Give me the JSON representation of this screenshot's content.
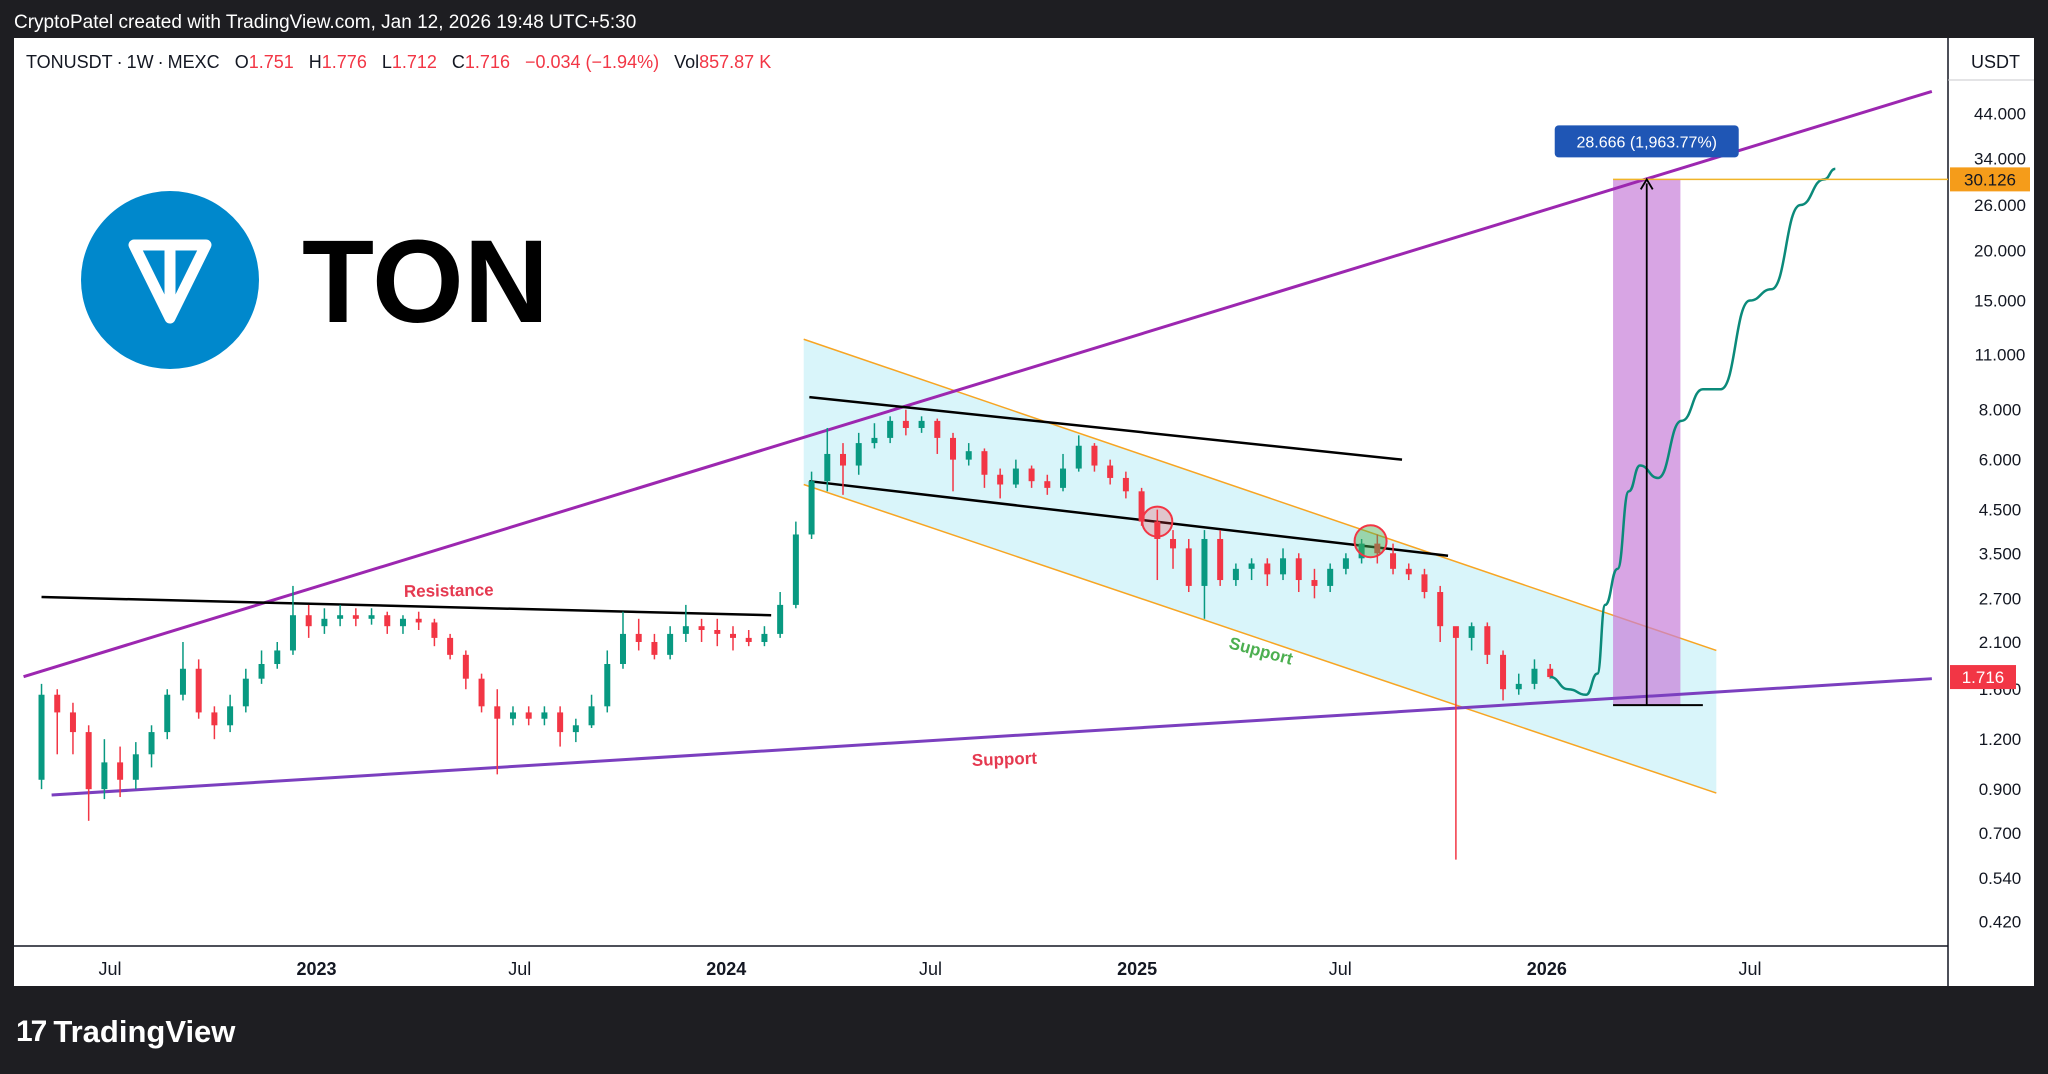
{
  "credit": "CryptoPatel created with TradingView.com, Jan 12, 2026 19:48 UTC+5:30",
  "header": {
    "symbol": "TONUSDT",
    "interval": "1W",
    "exchange": "MEXC",
    "open_label": "O",
    "open": "1.751",
    "high_label": "H",
    "high": "1.776",
    "low_label": "L",
    "low": "1.712",
    "close_label": "C",
    "close": "1.716",
    "change": "−0.034 (−1.94%)",
    "vol_label": "Vol",
    "volume": "857.87 K",
    "currency": "USDT"
  },
  "branding": {
    "coin_name": "TON",
    "logo_color": "#0088cc"
  },
  "footer": {
    "brand": "TradingView"
  },
  "colors": {
    "up": "#089981",
    "down": "#f23645",
    "channel_fill": "#ccf1f8",
    "channel_edge": "#f7a523",
    "support_line": "#7b3fbf",
    "upper_trend": "#9c27b0",
    "target_box": "#c77fd9",
    "projection": "#0b8a7a",
    "target_tag": "#f59c1a",
    "measure_tag": "#1f56b5"
  },
  "chart_data": {
    "type": "candlestick",
    "title": "",
    "y_scale": "log",
    "ylim": [
      0.38,
      60
    ],
    "y_ticks": [
      "44.000",
      "34.000",
      "26.000",
      "20.000",
      "15.000",
      "11.000",
      "8.000",
      "6.000",
      "4.500",
      "3.500",
      "2.700",
      "2.100",
      "1.600",
      "1.200",
      "0.900",
      "0.700",
      "0.540",
      "0.420"
    ],
    "x_ticks": [
      "Jul",
      "2023",
      "Jul",
      "2024",
      "Jul",
      "2025",
      "Jul",
      "2026",
      "Jul"
    ],
    "x_tick_values": [
      "2022-07-01",
      "2023-01-01",
      "2023-07-01",
      "2024-01-01",
      "2024-07-01",
      "2025-01-01",
      "2025-07-01",
      "2026-01-01",
      "2026-07-01"
    ],
    "xlim": [
      "2022-04-15",
      "2026-12-15"
    ],
    "candles": [
      [
        "2022-05-01",
        0.95,
        1.55,
        1.65,
        0.9
      ],
      [
        "2022-05-15",
        1.55,
        1.4,
        1.6,
        1.1
      ],
      [
        "2022-05-29",
        1.4,
        1.25,
        1.48,
        1.1
      ],
      [
        "2022-06-12",
        1.25,
        0.9,
        1.3,
        0.75
      ],
      [
        "2022-06-26",
        0.9,
        1.05,
        1.2,
        0.85
      ],
      [
        "2022-07-10",
        1.05,
        0.95,
        1.15,
        0.86
      ],
      [
        "2022-07-24",
        0.95,
        1.1,
        1.18,
        0.9
      ],
      [
        "2022-08-07",
        1.1,
        1.25,
        1.3,
        1.02
      ],
      [
        "2022-08-21",
        1.25,
        1.55,
        1.6,
        1.2
      ],
      [
        "2022-09-04",
        1.55,
        1.8,
        2.1,
        1.5
      ],
      [
        "2022-09-18",
        1.8,
        1.4,
        1.9,
        1.35
      ],
      [
        "2022-10-02",
        1.4,
        1.3,
        1.45,
        1.2
      ],
      [
        "2022-10-16",
        1.3,
        1.45,
        1.55,
        1.25
      ],
      [
        "2022-10-30",
        1.45,
        1.7,
        1.8,
        1.4
      ],
      [
        "2022-11-13",
        1.7,
        1.85,
        2.0,
        1.65
      ],
      [
        "2022-11-27",
        1.85,
        2.0,
        2.1,
        1.8
      ],
      [
        "2022-12-11",
        2.0,
        2.45,
        2.9,
        1.95
      ],
      [
        "2022-12-25",
        2.45,
        2.3,
        2.6,
        2.15
      ],
      [
        "2023-01-08",
        2.3,
        2.4,
        2.55,
        2.2
      ],
      [
        "2023-01-22",
        2.4,
        2.45,
        2.6,
        2.3
      ],
      [
        "2023-02-05",
        2.45,
        2.4,
        2.55,
        2.3
      ],
      [
        "2023-02-19",
        2.4,
        2.45,
        2.55,
        2.32
      ],
      [
        "2023-03-05",
        2.45,
        2.3,
        2.5,
        2.2
      ],
      [
        "2023-03-19",
        2.3,
        2.4,
        2.45,
        2.2
      ],
      [
        "2023-04-02",
        2.4,
        2.35,
        2.5,
        2.25
      ],
      [
        "2023-04-16",
        2.35,
        2.15,
        2.4,
        2.05
      ],
      [
        "2023-04-30",
        2.15,
        1.95,
        2.2,
        1.9
      ],
      [
        "2023-05-14",
        1.95,
        1.7,
        2.0,
        1.6
      ],
      [
        "2023-05-28",
        1.7,
        1.45,
        1.75,
        1.4
      ],
      [
        "2023-06-11",
        1.45,
        1.35,
        1.6,
        0.98
      ],
      [
        "2023-06-25",
        1.35,
        1.4,
        1.45,
        1.3
      ],
      [
        "2023-07-09",
        1.4,
        1.35,
        1.45,
        1.3
      ],
      [
        "2023-07-23",
        1.35,
        1.4,
        1.45,
        1.3
      ],
      [
        "2023-08-06",
        1.4,
        1.25,
        1.45,
        1.15
      ],
      [
        "2023-08-20",
        1.25,
        1.3,
        1.35,
        1.18
      ],
      [
        "2023-09-03",
        1.3,
        1.45,
        1.55,
        1.28
      ],
      [
        "2023-09-17",
        1.45,
        1.85,
        2.0,
        1.4
      ],
      [
        "2023-10-01",
        1.85,
        2.2,
        2.5,
        1.8
      ],
      [
        "2023-10-15",
        2.2,
        2.1,
        2.4,
        2.0
      ],
      [
        "2023-10-29",
        2.1,
        1.95,
        2.2,
        1.9
      ],
      [
        "2023-11-12",
        1.95,
        2.2,
        2.3,
        1.9
      ],
      [
        "2023-11-26",
        2.2,
        2.3,
        2.6,
        2.1
      ],
      [
        "2023-12-10",
        2.3,
        2.25,
        2.4,
        2.1
      ],
      [
        "2023-12-24",
        2.25,
        2.2,
        2.4,
        2.05
      ],
      [
        "2024-01-07",
        2.2,
        2.15,
        2.3,
        2.0
      ],
      [
        "2024-01-21",
        2.15,
        2.1,
        2.25,
        2.05
      ],
      [
        "2024-02-04",
        2.1,
        2.2,
        2.3,
        2.05
      ],
      [
        "2024-02-18",
        2.2,
        2.6,
        2.8,
        2.15
      ],
      [
        "2024-03-03",
        2.6,
        3.9,
        4.2,
        2.55
      ],
      [
        "2024-03-17",
        3.9,
        5.3,
        5.6,
        3.8
      ],
      [
        "2024-03-31",
        5.3,
        6.2,
        7.2,
        5.0
      ],
      [
        "2024-04-14",
        6.2,
        5.8,
        6.6,
        4.9
      ],
      [
        "2024-04-28",
        5.8,
        6.6,
        7.0,
        5.5
      ],
      [
        "2024-05-12",
        6.6,
        6.8,
        7.4,
        6.4
      ],
      [
        "2024-05-26",
        6.8,
        7.5,
        7.7,
        6.6
      ],
      [
        "2024-06-09",
        7.5,
        7.2,
        8.0,
        6.9
      ],
      [
        "2024-06-23",
        7.2,
        7.5,
        7.7,
        7.0
      ],
      [
        "2024-07-07",
        7.5,
        6.8,
        7.6,
        6.2
      ],
      [
        "2024-07-21",
        6.8,
        6.0,
        7.0,
        5.0
      ],
      [
        "2024-08-04",
        6.0,
        6.3,
        6.6,
        5.8
      ],
      [
        "2024-08-18",
        6.3,
        5.5,
        6.4,
        5.1
      ],
      [
        "2024-09-01",
        5.5,
        5.2,
        5.7,
        4.8
      ],
      [
        "2024-09-15",
        5.2,
        5.7,
        6.0,
        5.1
      ],
      [
        "2024-09-29",
        5.7,
        5.3,
        5.8,
        5.1
      ],
      [
        "2024-10-13",
        5.3,
        5.1,
        5.5,
        4.9
      ],
      [
        "2024-10-27",
        5.1,
        5.7,
        6.2,
        5.0
      ],
      [
        "2024-11-10",
        5.7,
        6.5,
        6.9,
        5.6
      ],
      [
        "2024-11-24",
        6.5,
        5.8,
        6.6,
        5.6
      ],
      [
        "2024-12-08",
        5.8,
        5.4,
        6.0,
        5.2
      ],
      [
        "2024-12-22",
        5.4,
        5.0,
        5.6,
        4.8
      ],
      [
        "2025-01-05",
        5.0,
        4.2,
        5.1,
        4.1
      ],
      [
        "2025-01-19",
        4.2,
        3.8,
        4.5,
        3.0
      ],
      [
        "2025-02-02",
        3.8,
        3.6,
        4.0,
        3.2
      ],
      [
        "2025-02-16",
        3.6,
        2.9,
        3.8,
        2.8
      ],
      [
        "2025-03-02",
        2.9,
        3.8,
        4.0,
        2.4
      ],
      [
        "2025-03-16",
        3.8,
        3.0,
        4.0,
        2.9
      ],
      [
        "2025-03-30",
        3.0,
        3.2,
        3.3,
        2.9
      ],
      [
        "2025-04-13",
        3.2,
        3.3,
        3.4,
        3.0
      ],
      [
        "2025-04-27",
        3.3,
        3.1,
        3.4,
        2.9
      ],
      [
        "2025-05-11",
        3.1,
        3.4,
        3.6,
        3.0
      ],
      [
        "2025-05-25",
        3.4,
        3.0,
        3.5,
        2.8
      ],
      [
        "2025-06-08",
        3.0,
        2.9,
        3.2,
        2.7
      ],
      [
        "2025-06-22",
        2.9,
        3.2,
        3.3,
        2.8
      ],
      [
        "2025-07-06",
        3.2,
        3.4,
        3.5,
        3.1
      ],
      [
        "2025-07-20",
        3.4,
        3.7,
        3.8,
        3.3
      ],
      [
        "2025-08-03",
        3.7,
        3.5,
        3.9,
        3.3
      ],
      [
        "2025-08-17",
        3.5,
        3.2,
        3.7,
        3.1
      ],
      [
        "2025-08-31",
        3.2,
        3.1,
        3.3,
        3.0
      ],
      [
        "2025-09-14",
        3.1,
        2.8,
        3.2,
        2.7
      ],
      [
        "2025-09-28",
        2.8,
        2.3,
        2.9,
        2.1
      ],
      [
        "2025-10-12",
        2.3,
        2.15,
        2.25,
        0.6
      ],
      [
        "2025-10-26",
        2.15,
        2.3,
        2.35,
        2.0
      ],
      [
        "2025-11-09",
        2.3,
        1.95,
        2.35,
        1.85
      ],
      [
        "2025-11-23",
        1.95,
        1.6,
        2.0,
        1.5
      ],
      [
        "2025-12-07",
        1.6,
        1.65,
        1.75,
        1.55
      ],
      [
        "2025-12-21",
        1.65,
        1.8,
        1.9,
        1.6
      ],
      [
        "2026-01-04",
        1.8,
        1.716,
        1.85,
        1.7
      ]
    ],
    "projection": [
      [
        "2026-01-04",
        1.716
      ],
      [
        "2026-01-20",
        1.6
      ],
      [
        "2026-02-05",
        1.55
      ],
      [
        "2026-02-15",
        1.75
      ],
      [
        "2026-02-22",
        2.6
      ],
      [
        "2026-03-05",
        3.2
      ],
      [
        "2026-03-15",
        5.0
      ],
      [
        "2026-03-25",
        5.8
      ],
      [
        "2026-04-10",
        5.4
      ],
      [
        "2026-05-01",
        7.5
      ],
      [
        "2026-05-20",
        9.0
      ],
      [
        "2026-06-05",
        9.0
      ],
      [
        "2026-07-01",
        15.0
      ],
      [
        "2026-07-20",
        16.0
      ],
      [
        "2026-08-15",
        26.0
      ],
      [
        "2026-09-05",
        30.126
      ],
      [
        "2026-09-15",
        32.0
      ]
    ],
    "current_price": "1.716",
    "target_price": "30.126",
    "measure_label": "28.666 (1,963.77%)",
    "annotations": {
      "resistance": "Resistance",
      "support_channel": "Support",
      "support_line": "Support"
    }
  }
}
